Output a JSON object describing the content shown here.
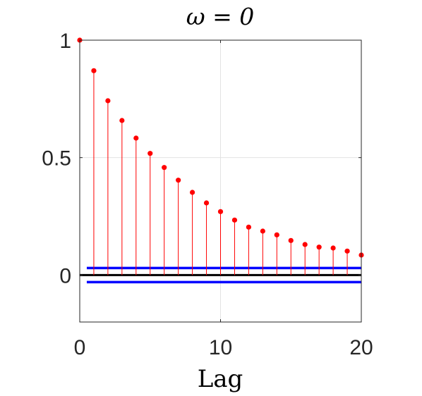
{
  "chart_data": {
    "type": "stem",
    "title": "ω = 0",
    "xlabel": "Lag",
    "ylabel": "",
    "xlim": [
      0,
      20
    ],
    "ylim": [
      -0.2,
      1
    ],
    "xticks": [
      0,
      10,
      20
    ],
    "xtick_labels": [
      "0",
      "10",
      "20"
    ],
    "yticks": [
      0,
      0.5,
      1
    ],
    "ytick_labels": [
      "0",
      "0.5",
      "1"
    ],
    "grid": true,
    "series": [
      {
        "x": [
          0,
          1,
          2,
          3,
          4,
          5,
          6,
          7,
          8,
          9,
          10,
          11,
          12,
          13,
          14,
          15,
          16,
          17,
          18,
          19,
          20
        ],
        "values": [
          1.0,
          0.87,
          0.742,
          0.658,
          0.583,
          0.518,
          0.458,
          0.404,
          0.352,
          0.307,
          0.27,
          0.234,
          0.204,
          0.187,
          0.171,
          0.147,
          0.13,
          0.119,
          0.115,
          0.102,
          0.085
        ],
        "color": "#ff0000"
      }
    ],
    "confidence_bounds": {
      "upper": 0.03,
      "lower": -0.03,
      "x_start": 0.5,
      "x_end": 20,
      "color": "#0000ff"
    },
    "zero_line_color": "#000000"
  }
}
